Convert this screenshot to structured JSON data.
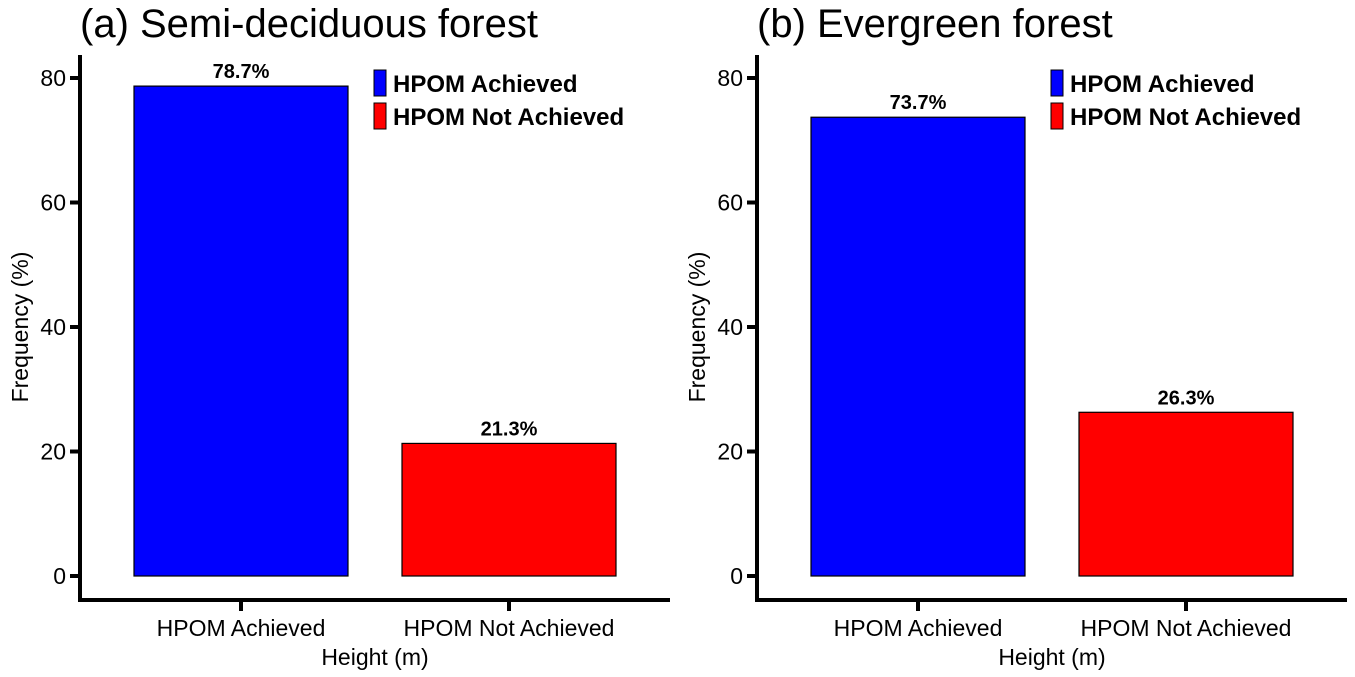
{
  "chart_data": [
    {
      "type": "bar",
      "title": "(a) Semi-deciduous forest",
      "categories": [
        "HPOM Achieved",
        "HPOM Not Achieved"
      ],
      "values": [
        78.7,
        21.3
      ],
      "value_labels": [
        "78.7%",
        "21.3%"
      ],
      "colors": [
        "#0000FF",
        "#FF0000"
      ],
      "xlabel": "Height (m)",
      "ylabel": "Frequency (%)",
      "ylim": [
        0,
        80
      ],
      "yticks": [
        0,
        20,
        40,
        60,
        80
      ],
      "grid": false,
      "legend": {
        "position": "top-right",
        "entries": [
          "HPOM Achieved",
          "HPOM Not Achieved"
        ]
      }
    },
    {
      "type": "bar",
      "title": "(b) Evergreen forest",
      "categories": [
        "HPOM Achieved",
        "HPOM Not Achieved"
      ],
      "values": [
        73.7,
        26.3
      ],
      "value_labels": [
        "73.7%",
        "26.3%"
      ],
      "colors": [
        "#0000FF",
        "#FF0000"
      ],
      "xlabel": "Height (m)",
      "ylabel": "Frequency (%)",
      "ylim": [
        0,
        80
      ],
      "yticks": [
        0,
        20,
        40,
        60,
        80
      ],
      "grid": false,
      "legend": {
        "position": "top-right",
        "entries": [
          "HPOM Achieved",
          "HPOM Not Achieved"
        ]
      }
    }
  ]
}
